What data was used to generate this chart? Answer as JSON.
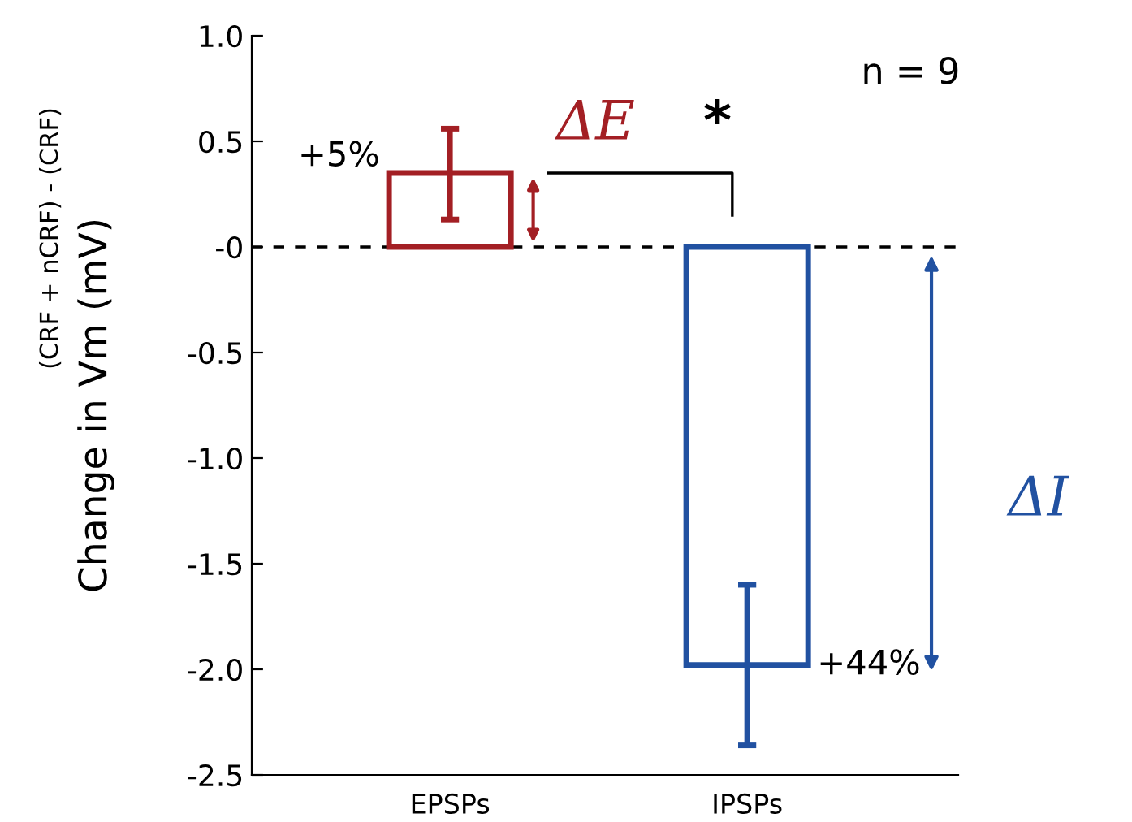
{
  "chart_data": {
    "type": "bar",
    "ylabel": "Change in Vm (mV)",
    "categories": [
      "EPSPs",
      "IPSPs"
    ],
    "values": [
      0.35,
      -1.98
    ],
    "colors": [
      "#a31f24",
      "#2151a1"
    ],
    "errors": [
      [
        0.13,
        0.56
      ],
      [
        -2.36,
        -1.6
      ]
    ],
    "ylim": [
      -2.5,
      1.0
    ],
    "yticks": [
      {
        "value": -2.5,
        "label": "-2.5"
      },
      {
        "value": -2.0,
        "label": "-2.0"
      },
      {
        "value": -1.5,
        "label": "-1.5"
      },
      {
        "value": -1.0,
        "label": "-1.0"
      },
      {
        "value": -0.5,
        "label": "-0.5"
      },
      {
        "value": 0,
        "label": "-0"
      },
      {
        "value": 0.5,
        "label": "0.5"
      },
      {
        "value": 1.0,
        "label": "1.0"
      }
    ],
    "ref_lines": [
      {
        "axis": "y",
        "value": 0,
        "line_style": "dashed",
        "color": "#000000"
      }
    ],
    "annotations": [
      "(CRF + nCRF) - (CRF)",
      "n = 9",
      {
        "text": "+5%",
        "x": "EPSPs",
        "y": 0.35
      },
      {
        "text": "+44%",
        "x": "IPSPs",
        "y": -1.98
      },
      "ΔE",
      "*",
      "ΔI"
    ],
    "grid": false,
    "legend": false
  }
}
